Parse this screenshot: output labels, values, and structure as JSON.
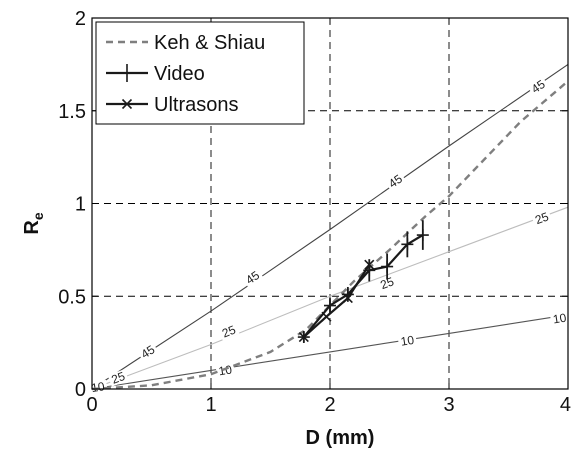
{
  "chart_data": {
    "type": "line",
    "xlabel": "D (mm)",
    "ylabel": {
      "main": "R",
      "sub": "e"
    },
    "xlim": [
      0,
      4
    ],
    "ylim": [
      0,
      2
    ],
    "xticks": [
      0,
      1,
      2,
      3,
      4
    ],
    "yticks": [
      0,
      0.5,
      1,
      1.5,
      2
    ],
    "xtick_labels": [
      "0",
      "1",
      "2",
      "3",
      "4"
    ],
    "ytick_labels": [
      "0",
      "0.5",
      "1",
      "1.5",
      "2"
    ],
    "grid": "dashed",
    "legend_position": "top-left",
    "series": [
      {
        "name": "Keh & Shiau",
        "style": "dashed",
        "color": "#7f7f7f",
        "x": [
          0,
          0.5,
          1.0,
          1.5,
          1.8,
          2.0,
          2.2,
          2.5,
          2.8,
          3.0,
          3.3,
          3.6,
          4.0
        ],
        "y": [
          0,
          0.02,
          0.08,
          0.2,
          0.32,
          0.45,
          0.58,
          0.75,
          0.93,
          1.04,
          1.24,
          1.44,
          1.66
        ]
      },
      {
        "name": "Video",
        "marker": "+",
        "color": "#1a1a1a",
        "x": [
          1.78,
          2.0,
          2.15,
          2.33,
          2.48,
          2.65,
          2.78
        ],
        "y": [
          0.28,
          0.45,
          0.51,
          0.64,
          0.66,
          0.78,
          0.83
        ],
        "yerr": [
          0.03,
          0.04,
          0.04,
          0.06,
          0.07,
          0.07,
          0.08
        ]
      },
      {
        "name": "Ultrasons",
        "marker": "x",
        "color": "#1a1a1a",
        "x": [
          1.78,
          1.97,
          2.15,
          2.33
        ],
        "y": [
          0.28,
          0.39,
          0.49,
          0.67
        ]
      }
    ],
    "contours": [
      {
        "level": "45",
        "color": "#444444",
        "x": [
          0,
          1,
          2,
          3,
          4
        ],
        "y": [
          0,
          0.42,
          0.86,
          1.31,
          1.75
        ],
        "labels": [
          {
            "text": "45",
            "x": 0.47,
            "y": 0.2
          },
          {
            "text": "45",
            "x": 1.35,
            "y": 0.6
          },
          {
            "text": "45",
            "x": 2.55,
            "y": 1.12
          },
          {
            "text": "45",
            "x": 3.75,
            "y": 1.63
          }
        ]
      },
      {
        "level": "25",
        "color": "#bdbdbd",
        "x": [
          0,
          1,
          2,
          3,
          4
        ],
        "y": [
          0,
          0.24,
          0.5,
          0.74,
          0.98
        ],
        "labels": [
          {
            "text": "25",
            "x": 0.22,
            "y": 0.06
          },
          {
            "text": "25",
            "x": 1.15,
            "y": 0.31
          },
          {
            "text": "25",
            "x": 2.48,
            "y": 0.57
          },
          {
            "text": "25",
            "x": 3.78,
            "y": 0.92
          }
        ]
      },
      {
        "level": "10",
        "color": "#555555",
        "x": [
          0,
          1,
          2,
          3,
          4
        ],
        "y": [
          0,
          0.1,
          0.2,
          0.3,
          0.4
        ],
        "labels": [
          {
            "text": "10",
            "x": 0.05,
            "y": 0.01
          },
          {
            "text": "10",
            "x": 1.12,
            "y": 0.1
          },
          {
            "text": "10",
            "x": 2.65,
            "y": 0.26
          },
          {
            "text": "10",
            "x": 3.93,
            "y": 0.38
          }
        ]
      }
    ]
  }
}
